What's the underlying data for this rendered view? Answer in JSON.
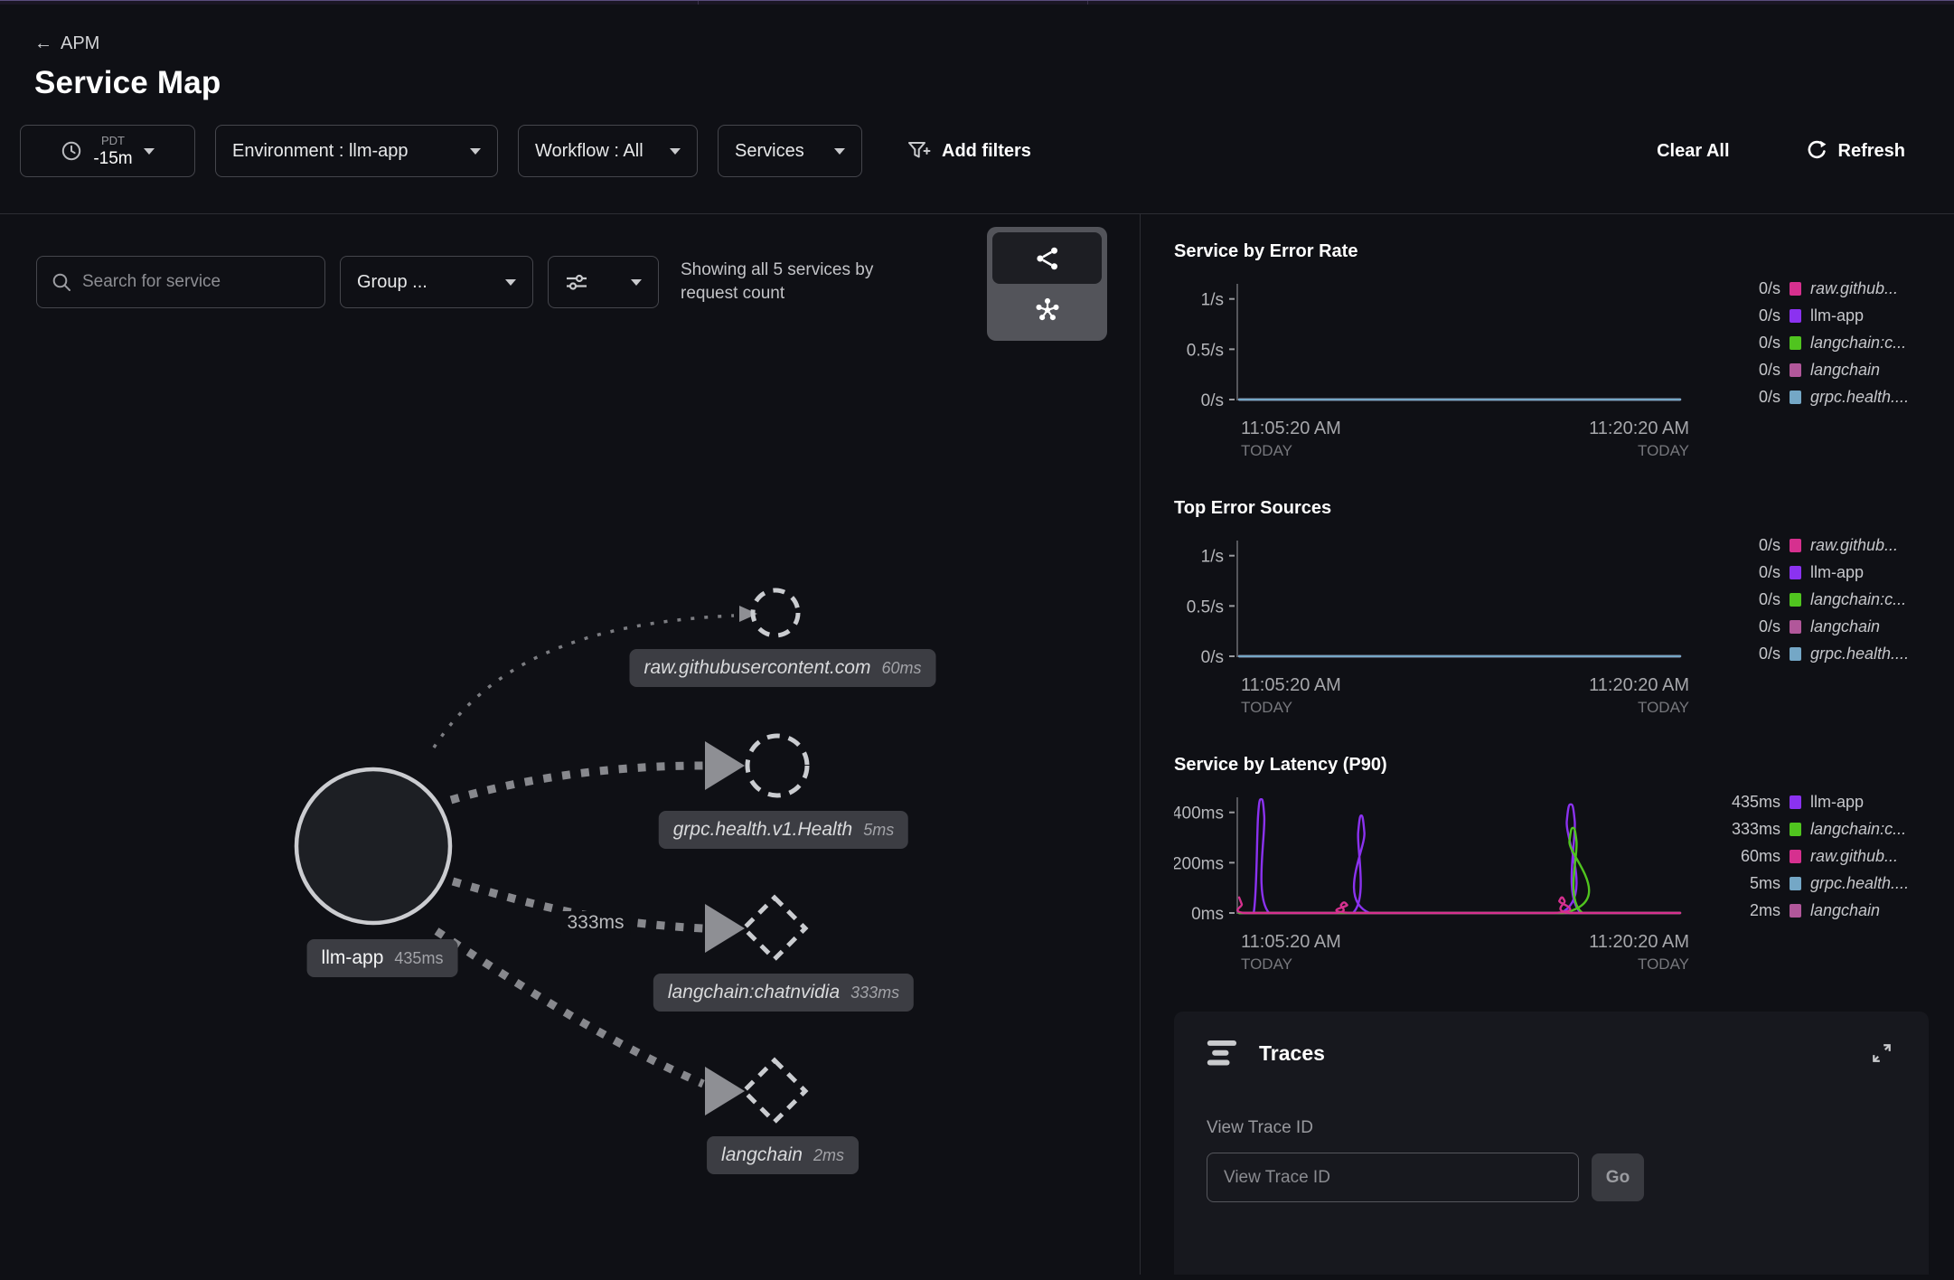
{
  "icons": {
    "back_arrow": "←"
  },
  "header": {
    "breadcrumb": "APM",
    "title": "Service Map"
  },
  "filter_bar": {
    "timezone": "PDT",
    "time_range": "-15m",
    "environment": "Environment : llm-app",
    "workflow": "Workflow : All",
    "services": "Services",
    "add_filters": "Add filters",
    "clear_all": "Clear All",
    "refresh": "Refresh"
  },
  "map": {
    "search_placeholder": "Search for service",
    "group_dropdown": "Group ...",
    "showing_text": "Showing all 5 services by request count",
    "edge_label": "333ms",
    "nodes": [
      {
        "name": "llm-app",
        "latency": "435ms"
      },
      {
        "name": "raw.githubusercontent.com",
        "latency": "60ms"
      },
      {
        "name": "grpc.health.v1.Health",
        "latency": "5ms"
      },
      {
        "name": "langchain:chatnvidia",
        "latency": "333ms"
      },
      {
        "name": "langchain",
        "latency": "2ms"
      }
    ]
  },
  "chart_data": [
    {
      "type": "line",
      "title": "Service by Error Rate",
      "unit": "/s",
      "ymax": 1.15,
      "grid": false,
      "legend_position": "right",
      "ticks": [
        {
          "label": "1/s",
          "value": 1
        },
        {
          "label": "0.5/s",
          "value": 0.5
        },
        {
          "label": "0/s",
          "value": 0
        }
      ],
      "x_ticks": [
        {
          "time": "11:05:20 AM",
          "day": "TODAY"
        },
        {
          "time": "11:20:20 AM",
          "day": "TODAY"
        }
      ],
      "series": [
        {
          "name": "raw.githubusercontent.com",
          "color": "#d6308f",
          "points": [
            [
              0,
              0
            ],
            [
              1,
              0
            ]
          ]
        },
        {
          "name": "llm-app",
          "color": "#8b32f0",
          "points": [
            [
              0,
              0
            ],
            [
              1,
              0
            ]
          ]
        },
        {
          "name": "langchain:chatnvidia",
          "color": "#50c41f",
          "points": [
            [
              0,
              0
            ],
            [
              1,
              0
            ]
          ]
        },
        {
          "name": "langchain",
          "color": "#b1579a",
          "points": [
            [
              0,
              0
            ],
            [
              1,
              0
            ]
          ]
        },
        {
          "name": "grpc.health.v1.Health",
          "color": "#74a7c6",
          "points": [
            [
              0,
              0
            ],
            [
              1,
              0
            ]
          ]
        }
      ],
      "legend": [
        {
          "value": "0/s",
          "color": "#d6308f",
          "label": "raw.github..."
        },
        {
          "value": "0/s",
          "color": "#8b32f0",
          "label": "llm-app"
        },
        {
          "value": "0/s",
          "color": "#50c41f",
          "label": "langchain:c..."
        },
        {
          "value": "0/s",
          "color": "#b1579a",
          "label": "langchain"
        },
        {
          "value": "0/s",
          "color": "#74a7c6",
          "label": "grpc.health...."
        }
      ]
    },
    {
      "type": "line",
      "title": "Top Error Sources",
      "unit": "/s",
      "ymax": 1.15,
      "grid": false,
      "legend_position": "right",
      "ticks": [
        {
          "label": "1/s",
          "value": 1
        },
        {
          "label": "0.5/s",
          "value": 0.5
        },
        {
          "label": "0/s",
          "value": 0
        }
      ],
      "x_ticks": [
        {
          "time": "11:05:20 AM",
          "day": "TODAY"
        },
        {
          "time": "11:20:20 AM",
          "day": "TODAY"
        }
      ],
      "series": [
        {
          "name": "raw.githubusercontent.com",
          "color": "#d6308f",
          "points": [
            [
              0,
              0
            ],
            [
              1,
              0
            ]
          ]
        },
        {
          "name": "llm-app",
          "color": "#8b32f0",
          "points": [
            [
              0,
              0
            ],
            [
              1,
              0
            ]
          ]
        },
        {
          "name": "langchain:chatnvidia",
          "color": "#50c41f",
          "points": [
            [
              0,
              0
            ],
            [
              1,
              0
            ]
          ]
        },
        {
          "name": "langchain",
          "color": "#b1579a",
          "points": [
            [
              0,
              0
            ],
            [
              1,
              0
            ]
          ]
        },
        {
          "name": "grpc.health.v1.Health",
          "color": "#74a7c6",
          "points": [
            [
              0,
              0
            ],
            [
              1,
              0
            ]
          ]
        }
      ],
      "legend": [
        {
          "value": "0/s",
          "color": "#d6308f",
          "label": "raw.github..."
        },
        {
          "value": "0/s",
          "color": "#8b32f0",
          "label": "llm-app"
        },
        {
          "value": "0/s",
          "color": "#50c41f",
          "label": "langchain:c..."
        },
        {
          "value": "0/s",
          "color": "#b1579a",
          "label": "langchain"
        },
        {
          "value": "0/s",
          "color": "#74a7c6",
          "label": "grpc.health...."
        }
      ]
    },
    {
      "type": "line",
      "title": "Service by Latency (P90)",
      "unit": "ms",
      "ymax": 460,
      "grid": false,
      "legend_position": "right",
      "ticks": [
        {
          "label": "400ms",
          "value": 400
        },
        {
          "label": "200ms",
          "value": 200
        },
        {
          "label": "0ms",
          "value": 0
        }
      ],
      "x_ticks": [
        {
          "time": "11:05:20 AM",
          "day": "TODAY"
        },
        {
          "time": "11:20:20 AM",
          "day": "TODAY"
        }
      ],
      "series": [
        {
          "name": "grpc.health.v1.Health",
          "color": "#74a7c6",
          "points": [
            [
              0,
              0
            ],
            [
              1,
              0
            ]
          ]
        },
        {
          "name": "langchain",
          "color": "#b1579a",
          "points": [
            [
              0,
              0
            ],
            [
              1,
              0
            ]
          ]
        },
        {
          "name": "llm-app",
          "color": "#8b32f0",
          "points": [
            [
              0,
              0
            ],
            [
              0.033,
              0
            ],
            [
              0.043,
              385
            ],
            [
              0.05,
              452
            ],
            [
              0.057,
              385
            ],
            [
              0.068,
              0
            ],
            [
              0.258,
              0
            ],
            [
              0.27,
              320
            ],
            [
              0.277,
              388
            ],
            [
              0.284,
              320
            ],
            [
              0.296,
              0
            ],
            [
              0.729,
              0
            ],
            [
              0.743,
              365
            ],
            [
              0.752,
              432
            ],
            [
              0.761,
              365
            ],
            [
              0.775,
              0
            ],
            [
              1,
              0
            ]
          ]
        },
        {
          "name": "langchain:chatnvidia",
          "color": "#50c41f",
          "points": [
            [
              0,
              0
            ],
            [
              0.735,
              0
            ],
            [
              0.749,
              285
            ],
            [
              0.757,
              338
            ],
            [
              0.765,
              285
            ],
            [
              0.779,
              0
            ],
            [
              1,
              0
            ]
          ]
        },
        {
          "name": "raw.githubusercontent.com",
          "color": "#d6308f",
          "points": [
            [
              0,
              62
            ],
            [
              0.006,
              35
            ],
            [
              0.014,
              0
            ],
            [
              0.218,
              0
            ],
            [
              0.231,
              32
            ],
            [
              0.238,
              42
            ],
            [
              0.245,
              32
            ],
            [
              0.258,
              0
            ],
            [
              0.713,
              0
            ],
            [
              0.726,
              48
            ],
            [
              0.732,
              62
            ],
            [
              0.738,
              48
            ],
            [
              0.751,
              0
            ],
            [
              1,
              0
            ]
          ]
        }
      ],
      "legend": [
        {
          "value": "435ms",
          "color": "#8b32f0",
          "label": "llm-app"
        },
        {
          "value": "333ms",
          "color": "#50c41f",
          "label": "langchain:c..."
        },
        {
          "value": "60ms",
          "color": "#d6308f",
          "label": "raw.github..."
        },
        {
          "value": "5ms",
          "color": "#74a7c6",
          "label": "grpc.health...."
        },
        {
          "value": "2ms",
          "color": "#b1579a",
          "label": "langchain"
        }
      ]
    }
  ],
  "traces": {
    "title": "Traces",
    "field_label": "View Trace ID",
    "input_placeholder": "View Trace ID",
    "go_label": "Go"
  }
}
